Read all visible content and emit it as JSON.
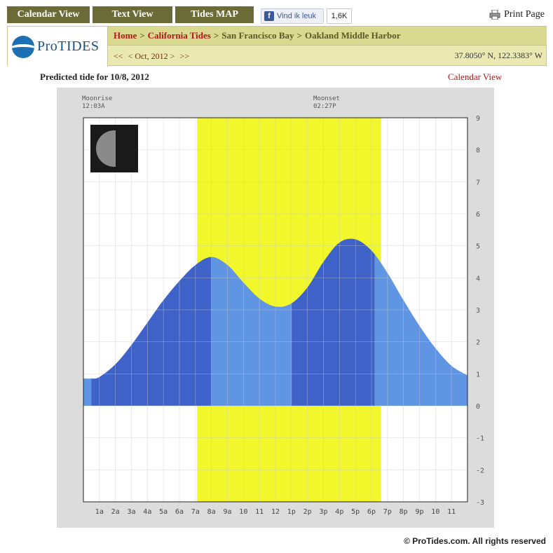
{
  "tabs": [
    "Calendar View",
    "Text View",
    "Tides MAP"
  ],
  "facebook": {
    "label": "Vind ik leuk",
    "count": "1,6K"
  },
  "print_label": "Print Page",
  "logo_text": "ProTIDES",
  "breadcrumb": [
    "Home",
    "California Tides",
    "San Francisco Bay",
    "Oakland Middle Harbor"
  ],
  "date_nav": {
    "first": "<<",
    "prev": "< Oct, 2012 >",
    "next": ">>"
  },
  "coordinates": "37.8050° N, 122.3383° W",
  "predicted_title": "Predicted tide for 10/8, 2012",
  "calendar_link": "Calendar View",
  "moonrise": {
    "label": "Moonrise",
    "time": "12:03A"
  },
  "moonset": {
    "label": "Moonset",
    "time": "02:27P"
  },
  "footer": "© ProTides.com. All rights reserved",
  "colors": {
    "daylight": "#f2f72b",
    "tide_dark": "#3f62c8",
    "tide_light": "#5f95e3",
    "plot_bg": "#ffffff"
  },
  "chart_data": {
    "type": "area",
    "x_ticks": [
      "1a",
      "2a",
      "3a",
      "4a",
      "5a",
      "6a",
      "7a",
      "8a",
      "9a",
      "10",
      "11",
      "12",
      "1p",
      "2p",
      "3p",
      "4p",
      "5p",
      "6p",
      "7p",
      "8p",
      "9p",
      "10",
      "11"
    ],
    "y_ticks": [
      9,
      8,
      7,
      6,
      5,
      4,
      3,
      2,
      1,
      0,
      -1,
      -2,
      -3
    ],
    "ylim": [
      -3,
      9
    ],
    "xlim_hours": [
      0,
      24
    ],
    "x_hours": [
      0,
      0.5,
      1,
      2,
      3,
      4,
      5,
      6,
      7,
      8,
      9,
      10,
      11,
      12,
      13,
      14,
      15,
      16,
      17,
      18,
      19,
      20,
      21,
      22,
      23,
      24
    ],
    "tide_height": [
      0.85,
      0.85,
      0.9,
      1.3,
      1.9,
      2.6,
      3.3,
      3.9,
      4.4,
      4.65,
      4.4,
      3.85,
      3.35,
      3.1,
      3.2,
      3.7,
      4.5,
      5.1,
      5.2,
      4.85,
      4.15,
      3.3,
      2.5,
      1.8,
      1.25,
      0.95
    ],
    "daylight_hours": [
      7.1,
      18.6
    ],
    "shading_breaks_hours": [
      8.0,
      13.0,
      18.2
    ]
  }
}
